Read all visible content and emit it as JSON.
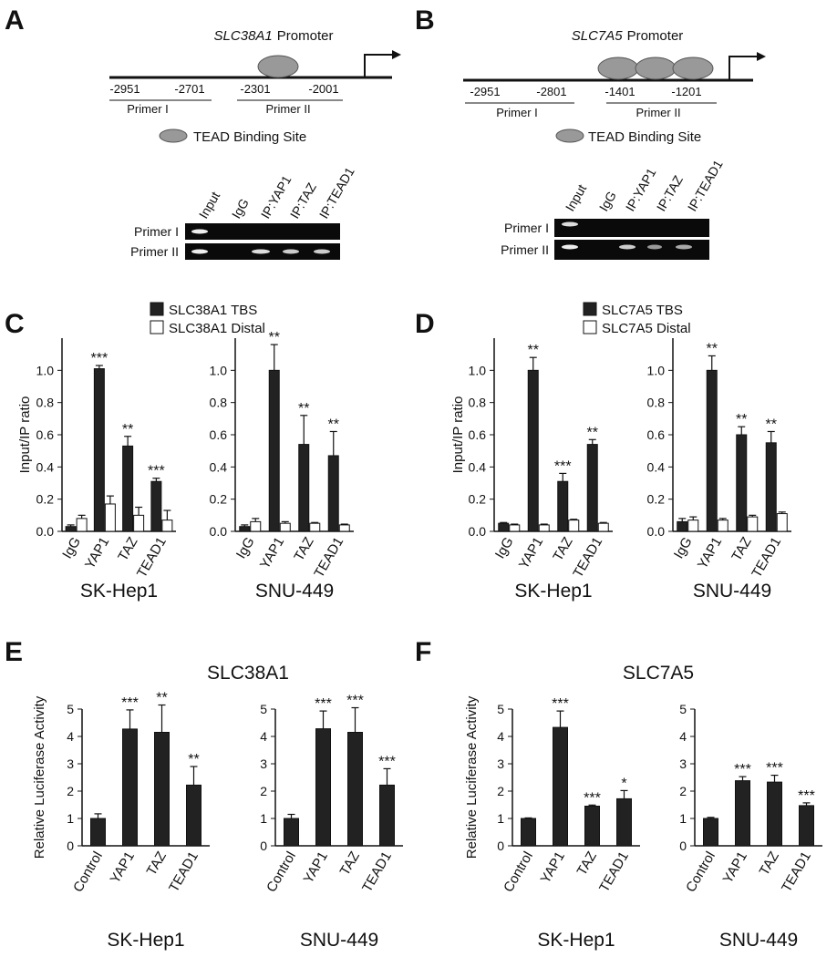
{
  "panel_labels": [
    "A",
    "B",
    "C",
    "D",
    "E",
    "F"
  ],
  "promoters": [
    {
      "gene": "SLC38A1",
      "suffix": "Promoter",
      "positions": [
        "-2951",
        "-2701",
        "-2301",
        "-2001"
      ],
      "primers": [
        "Primer I",
        "Primer II"
      ],
      "legend": "TEAD Binding Site",
      "gel": {
        "lanes": [
          "Input",
          "IgG",
          "IP:YAP1",
          "IP:TAZ",
          "IP:TEAD1"
        ],
        "rows": [
          "Primer I",
          "Primer II"
        ]
      }
    },
    {
      "gene": "SLC7A5",
      "suffix": "Promoter",
      "positions": [
        "-2951",
        "-2801",
        "-1401",
        "-1201"
      ],
      "primers": [
        "Primer I",
        "Primer II"
      ],
      "legend": "TEAD Binding Site",
      "gel": {
        "lanes": [
          "Input",
          "IgG",
          "IP:YAP1",
          "IP:TAZ",
          "IP:TEAD1"
        ],
        "rows": [
          "Primer I",
          "Primer II"
        ]
      }
    }
  ],
  "chart_data": [
    {
      "type": "bar",
      "ylabel": "Input/IP ratio",
      "xlabel": "SK-Hep1",
      "categories": [
        "IgG",
        "YAP1",
        "TAZ",
        "TEAD1"
      ],
      "ylim": [
        0,
        1.2
      ],
      "yticks": [
        {
          "value": 0,
          "label": "0.0"
        },
        0.2,
        0.4,
        0.6,
        0.8,
        {
          "value": 1,
          "label": "1.0"
        }
      ],
      "series": [
        {
          "name": "SLC38A1 TBS",
          "color": "#222222",
          "values": [
            0.03,
            1.01,
            0.53,
            0.31
          ],
          "errors": [
            0.01,
            0.02,
            0.06,
            0.02
          ],
          "annotations": [
            null,
            "***",
            "**",
            "***"
          ]
        },
        {
          "name": "SLC38A1 Distal",
          "color": "#ffffff",
          "values": [
            0.08,
            0.17,
            0.1,
            0.07
          ],
          "errors": [
            0.02,
            0.05,
            0.05,
            0.06
          ]
        }
      ]
    },
    {
      "type": "bar",
      "xlabel": "SNU-449",
      "categories": [
        "IgG",
        "YAP1",
        "TAZ",
        "TEAD1"
      ],
      "ylim": [
        0,
        1.2
      ],
      "yticks": [
        {
          "value": 0,
          "label": "0.0"
        },
        0.2,
        0.4,
        0.6,
        0.8,
        {
          "value": 1,
          "label": "1.0"
        }
      ],
      "series": [
        {
          "color": "#222222",
          "values": [
            0.03,
            1.0,
            0.54,
            0.47
          ],
          "errors": [
            0.01,
            0.16,
            0.18,
            0.15
          ],
          "annotations": [
            null,
            "**",
            "**",
            "**"
          ]
        },
        {
          "color": "#ffffff",
          "values": [
            0.06,
            0.05,
            0.05,
            0.04
          ],
          "errors": [
            0.02,
            0.01,
            0.005,
            0.005
          ]
        }
      ]
    },
    {
      "type": "bar",
      "ylabel": "Input/IP ratio",
      "xlabel": "SK-Hep1",
      "categories": [
        "IgG",
        "YAP1",
        "TAZ",
        "TEAD1"
      ],
      "ylim": [
        0,
        1.2
      ],
      "yticks": [
        {
          "value": 0,
          "label": "0.0"
        },
        0.2,
        0.4,
        0.6,
        0.8,
        {
          "value": 1,
          "label": "1.0"
        }
      ],
      "series": [
        {
          "name": "SLC7A5 TBS",
          "color": "#222222",
          "values": [
            0.05,
            1.0,
            0.31,
            0.54
          ],
          "errors": [
            0.005,
            0.08,
            0.05,
            0.03
          ],
          "annotations": [
            null,
            "**",
            "***",
            "**"
          ]
        },
        {
          "name": "SLC7A5 Distal",
          "color": "#ffffff",
          "values": [
            0.04,
            0.04,
            0.07,
            0.05
          ],
          "errors": [
            0.005,
            0.005,
            0.005,
            0.005
          ]
        }
      ]
    },
    {
      "type": "bar",
      "xlabel": "SNU-449",
      "categories": [
        "IgG",
        "YAP1",
        "TAZ",
        "TEAD1"
      ],
      "ylim": [
        0,
        1.2
      ],
      "yticks": [
        {
          "value": 0,
          "label": "0.0"
        },
        0.2,
        0.4,
        0.6,
        0.8,
        {
          "value": 1,
          "label": "1.0"
        }
      ],
      "series": [
        {
          "color": "#222222",
          "values": [
            0.06,
            1.0,
            0.6,
            0.55
          ],
          "errors": [
            0.02,
            0.09,
            0.05,
            0.07
          ],
          "annotations": [
            null,
            "**",
            "**",
            "**"
          ]
        },
        {
          "color": "#ffffff",
          "values": [
            0.07,
            0.07,
            0.09,
            0.11
          ],
          "errors": [
            0.02,
            0.01,
            0.01,
            0.01
          ]
        }
      ]
    },
    {
      "type": "bar",
      "title": "SLC38A1",
      "ylabel": "Relative Luciferase Activity",
      "xlabel": "SK-Hep1",
      "categories": [
        "Control",
        "YAP1",
        "TAZ",
        "TEAD1"
      ],
      "ylim": [
        0,
        5
      ],
      "yticks": [
        0,
        1,
        2,
        3,
        4,
        5
      ],
      "series": [
        {
          "color": "#222222",
          "values": [
            1.0,
            4.27,
            4.15,
            2.22
          ],
          "errors": [
            0.17,
            0.7,
            1.0,
            0.68
          ],
          "annotations": [
            null,
            "***",
            "**",
            "**"
          ]
        }
      ]
    },
    {
      "type": "bar",
      "xlabel": "SNU-449",
      "categories": [
        "Control",
        "YAP1",
        "TAZ",
        "TEAD1"
      ],
      "ylim": [
        0,
        5
      ],
      "yticks": [
        0,
        1,
        2,
        3,
        4,
        5
      ],
      "series": [
        {
          "color": "#222222",
          "values": [
            1.0,
            4.28,
            4.15,
            2.22
          ],
          "errors": [
            0.15,
            0.65,
            0.9,
            0.6
          ],
          "annotations": [
            null,
            "***",
            "***",
            "***"
          ]
        }
      ]
    },
    {
      "type": "bar",
      "title": "SLC7A5",
      "ylabel": "Relative Luciferase Activity",
      "xlabel": "SK-Hep1",
      "categories": [
        "Control",
        "YAP1",
        "TAZ",
        "TEAD1"
      ],
      "ylim": [
        0,
        5
      ],
      "yticks": [
        0,
        1,
        2,
        3,
        4,
        5
      ],
      "series": [
        {
          "color": "#222222",
          "values": [
            1.0,
            4.33,
            1.45,
            1.72
          ],
          "errors": [
            0.02,
            0.6,
            0.04,
            0.3
          ],
          "annotations": [
            null,
            "***",
            "***",
            "*"
          ]
        }
      ]
    },
    {
      "type": "bar",
      "xlabel": "SNU-449",
      "categories": [
        "Control",
        "YAP1",
        "TAZ",
        "TEAD1"
      ],
      "ylim": [
        0,
        5
      ],
      "yticks": [
        0,
        1,
        2,
        3,
        4,
        5
      ],
      "series": [
        {
          "color": "#222222",
          "values": [
            1.0,
            2.38,
            2.33,
            1.47
          ],
          "errors": [
            0.04,
            0.15,
            0.25,
            0.1
          ],
          "annotations": [
            null,
            "***",
            "***",
            "***"
          ]
        }
      ]
    }
  ]
}
